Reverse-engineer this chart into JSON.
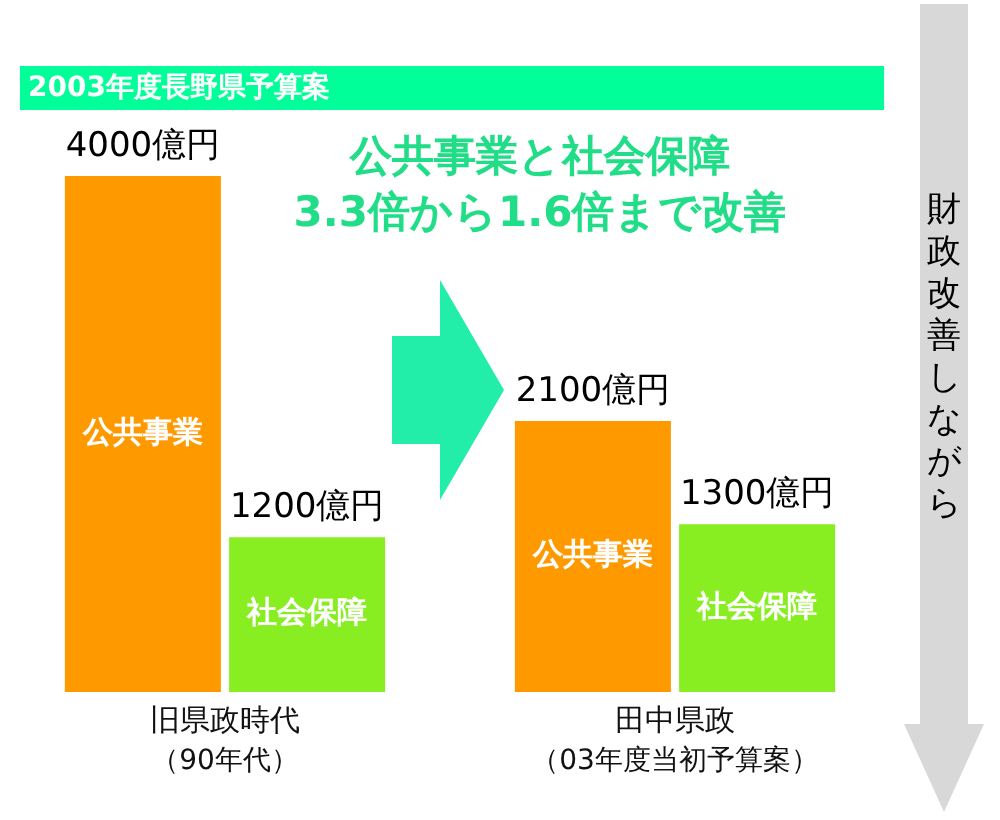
{
  "chart_data": {
    "type": "bar",
    "title": "2003年度長野県予算案",
    "categories": [
      "旧県政時代",
      "田中県政"
    ],
    "series": [
      {
        "name": "公共事業",
        "color": "#ff9900",
        "values": [
          4000,
          2100
        ],
        "value_labels": [
          "4000億円",
          "2100億円"
        ]
      },
      {
        "name": "社会保障",
        "color": "#88ee22",
        "values": [
          1200,
          1300
        ],
        "value_labels": [
          "1200億円",
          "1300億円"
        ]
      }
    ],
    "annotations": [
      "公共事業と社会保障\n3.3倍から1.6倍まで改善",
      "財政改善しながら",
      "（90年代）",
      "（03年度当初予算案）"
    ],
    "legend": false,
    "grid": false
  }
}
